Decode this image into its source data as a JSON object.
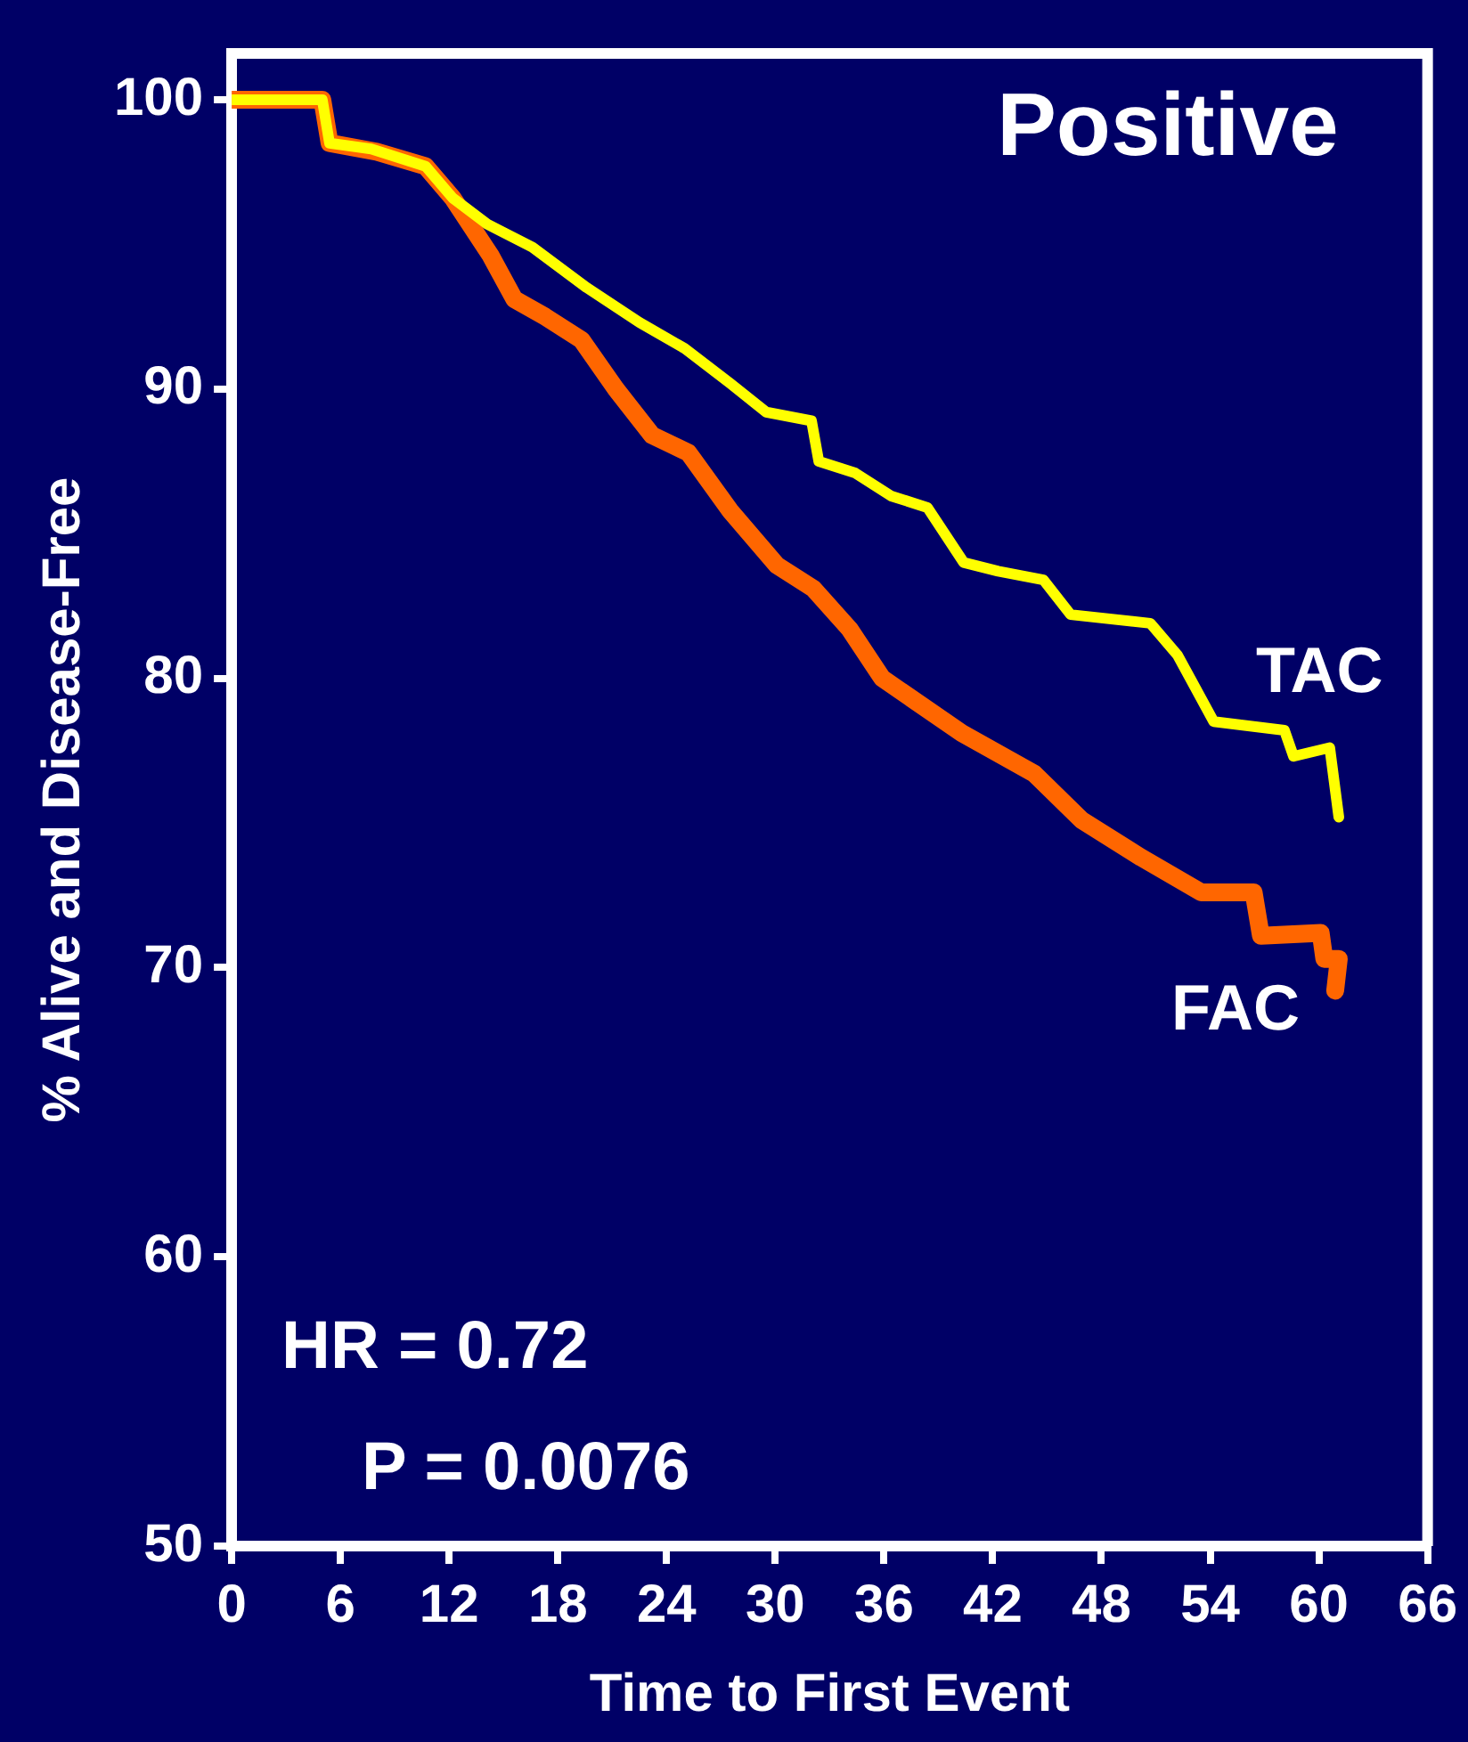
{
  "chart_data": {
    "type": "line",
    "title": "Positive",
    "xlabel": "Time to First Event",
    "ylabel": "% Alive and Disease-Free",
    "xlim": [
      0,
      66
    ],
    "xticks": [
      0,
      6,
      12,
      18,
      24,
      30,
      36,
      42,
      48,
      54,
      60,
      66
    ],
    "ylim": [
      50,
      101.6
    ],
    "yticks": [
      50,
      60,
      70,
      80,
      90,
      100
    ],
    "grid": false,
    "legend": false,
    "marker": "none",
    "line_style": "solid",
    "annotations": [
      "HR = 0.72",
      "P = 0.0076"
    ],
    "series": [
      {
        "name": "TAC",
        "color": "#ffff00",
        "x": [
          0,
          5,
          5.4,
          7.7,
          10.7,
          12.2,
          14.1,
          16.6,
          19.6,
          22.5,
          25,
          27.5,
          29.5,
          32,
          32.4,
          34.4,
          36.4,
          38.4,
          40.4,
          42.3,
          44.8,
          46.3,
          50.7,
          52.2,
          54.2,
          58.1,
          58.6,
          60.6,
          61.1
        ],
        "values": [
          100,
          100,
          98.5,
          98.3,
          97.7,
          96.6,
          95.7,
          94.9,
          93.5,
          92.3,
          91.4,
          90.2,
          89.2,
          88.9,
          87.5,
          87.1,
          86.3,
          85.9,
          84,
          83.7,
          83.4,
          82.2,
          81.9,
          80.8,
          78.5,
          78.2,
          77.3,
          77.6,
          75.2
        ]
      },
      {
        "name": "FAC",
        "color": "#ff6600",
        "x": [
          0,
          5,
          5.4,
          8,
          10.7,
          12.2,
          14.3,
          15.6,
          17.3,
          19.3,
          21.2,
          23.2,
          25.2,
          27.5,
          30.1,
          32.1,
          34.1,
          35.9,
          40.3,
          44.3,
          46.9,
          50.2,
          53.5,
          56.4,
          56.8,
          60.1,
          60.3,
          61.1,
          60.9
        ],
        "values": [
          100,
          100,
          98.5,
          98.2,
          97.7,
          96.6,
          94.6,
          93.1,
          92.5,
          91.7,
          90,
          88.4,
          87.8,
          85.8,
          83.9,
          83.1,
          81.7,
          80,
          78.1,
          76.7,
          75.1,
          73.8,
          72.6,
          72.6,
          71.1,
          71.2,
          70.3,
          70.3,
          69.2
        ]
      }
    ]
  }
}
